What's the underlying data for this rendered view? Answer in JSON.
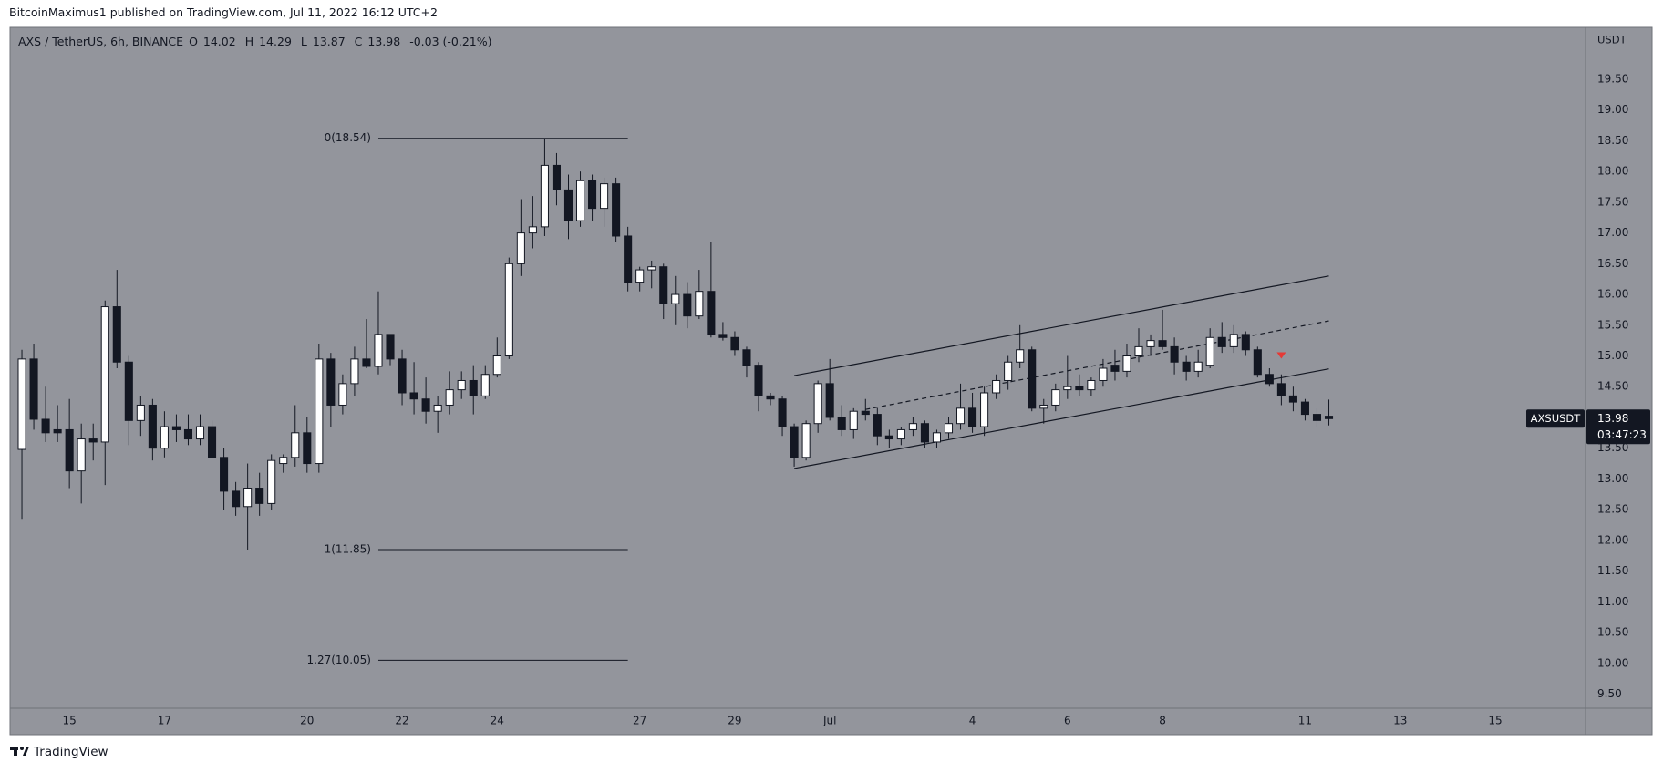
{
  "header": "BitcoinMaximus1 published on TradingView.com, Jul 11, 2022 16:12 UTC+2",
  "footer_brand": "TradingView",
  "chart_data": {
    "type": "candlestick",
    "title": "AXS / TetherUS, 6h, BINANCE",
    "ohlc_keys": [
      "O",
      "H",
      "L",
      "C"
    ],
    "change": "-0.03 (-0.21%)",
    "symbol": "AXSUSDT",
    "countdown": "03:47:23",
    "y_unit": "USDT",
    "up_color": "#ffffff",
    "down_color": "#131722",
    "wick_color": "#131722",
    "grid": false,
    "xlim": [
      -1,
      131.6
    ],
    "ylim": [
      9.27,
      20.33
    ],
    "xticks": [
      {
        "value": 4,
        "label": "15"
      },
      {
        "value": 12,
        "label": "17"
      },
      {
        "value": 24,
        "label": "20"
      },
      {
        "value": 32,
        "label": "22"
      },
      {
        "value": 40,
        "label": "24"
      },
      {
        "value": 52,
        "label": "27"
      },
      {
        "value": 60,
        "label": "29"
      },
      {
        "value": 68,
        "label": "Jul"
      },
      {
        "value": 80,
        "label": "4"
      },
      {
        "value": 88,
        "label": "6"
      },
      {
        "value": 96,
        "label": "8"
      },
      {
        "value": 108,
        "label": "11"
      },
      {
        "value": 116,
        "label": "13"
      },
      {
        "value": 124,
        "label": "15"
      }
    ],
    "yticks": [
      {
        "value": 9.5,
        "label": "9.50"
      },
      {
        "value": 10,
        "label": "10.00"
      },
      {
        "value": 10.5,
        "label": "10.50"
      },
      {
        "value": 11,
        "label": "11.00"
      },
      {
        "value": 11.5,
        "label": "11.50"
      },
      {
        "value": 12,
        "label": "12.00"
      },
      {
        "value": 12.5,
        "label": "12.50"
      },
      {
        "value": 13,
        "label": "13.00"
      },
      {
        "value": 13.5,
        "label": "13.50"
      },
      {
        "value": 14,
        "label": "14.00"
      },
      {
        "value": 14.5,
        "label": "14.50"
      },
      {
        "value": 15,
        "label": "15.00"
      },
      {
        "value": 15.5,
        "label": "15.50"
      },
      {
        "value": 16,
        "label": "16.00"
      },
      {
        "value": 16.5,
        "label": "16.50"
      },
      {
        "value": 17,
        "label": "17.00"
      },
      {
        "value": 17.5,
        "label": "17.50"
      },
      {
        "value": 18,
        "label": "18.00"
      },
      {
        "value": 18.5,
        "label": "18.50"
      },
      {
        "value": 19,
        "label": "19.00"
      },
      {
        "value": 19.5,
        "label": "19.50"
      }
    ],
    "fib_x": [
      30,
      51
    ],
    "fib_levels": [
      {
        "value": 18.54,
        "label": "0(18.54)"
      },
      {
        "value": 11.85,
        "label": "1(11.85)"
      },
      {
        "value": 10.05,
        "label": "1.27(10.05)"
      }
    ],
    "trendlines": [
      {
        "x": [
          65,
          110
        ],
        "y": [
          14.68,
          16.3
        ],
        "dashed": false
      },
      {
        "x": [
          65,
          110
        ],
        "y": [
          13.17,
          14.79
        ],
        "dashed": false
      },
      {
        "x": [
          71,
          110
        ],
        "y": [
          14.13,
          15.57
        ],
        "dashed": true
      }
    ],
    "marker": {
      "x": 106,
      "y": 15.0,
      "color": "#e53935"
    },
    "candles": [
      [
        13.48,
        15.1,
        12.35,
        14.95
      ],
      [
        14.95,
        15.2,
        13.8,
        13.97
      ],
      [
        13.97,
        14.5,
        13.6,
        13.75
      ],
      [
        13.8,
        14.2,
        13.6,
        13.75
      ],
      [
        13.8,
        14.3,
        12.85,
        13.13
      ],
      [
        13.13,
        13.9,
        12.6,
        13.65
      ],
      [
        13.65,
        13.9,
        13.3,
        13.6
      ],
      [
        13.6,
        15.9,
        12.9,
        15.8
      ],
      [
        15.8,
        16.4,
        14.8,
        14.9
      ],
      [
        14.9,
        15.0,
        13.55,
        13.95
      ],
      [
        13.95,
        14.35,
        13.7,
        14.2
      ],
      [
        14.2,
        14.3,
        13.3,
        13.5
      ],
      [
        13.5,
        14.1,
        13.35,
        13.85
      ],
      [
        13.85,
        14.05,
        13.6,
        13.8
      ],
      [
        13.8,
        14.05,
        13.55,
        13.65
      ],
      [
        13.65,
        14.05,
        13.55,
        13.85
      ],
      [
        13.85,
        13.95,
        13.35,
        13.35
      ],
      [
        13.35,
        13.5,
        12.5,
        12.8
      ],
      [
        12.8,
        12.95,
        12.4,
        12.55
      ],
      [
        12.55,
        13.25,
        11.85,
        12.85
      ],
      [
        12.85,
        13.1,
        12.4,
        12.6
      ],
      [
        12.6,
        13.4,
        12.5,
        13.3
      ],
      [
        13.25,
        13.4,
        13.1,
        13.35
      ],
      [
        13.35,
        14.2,
        13.2,
        13.75
      ],
      [
        13.75,
        14.0,
        13.1,
        13.25
      ],
      [
        13.25,
        15.2,
        13.1,
        14.95
      ],
      [
        14.95,
        15.05,
        13.85,
        14.2
      ],
      [
        14.2,
        14.7,
        14.05,
        14.55
      ],
      [
        14.55,
        15.15,
        14.35,
        14.95
      ],
      [
        14.95,
        15.6,
        14.8,
        14.83
      ],
      [
        14.83,
        16.05,
        14.7,
        15.35
      ],
      [
        15.35,
        15.35,
        14.85,
        14.95
      ],
      [
        14.95,
        15.1,
        14.2,
        14.4
      ],
      [
        14.4,
        14.9,
        14.05,
        14.3
      ],
      [
        14.3,
        14.65,
        13.9,
        14.1
      ],
      [
        14.1,
        14.35,
        13.75,
        14.2
      ],
      [
        14.2,
        14.75,
        14.05,
        14.45
      ],
      [
        14.45,
        14.75,
        14.3,
        14.6
      ],
      [
        14.6,
        14.85,
        14.05,
        14.35
      ],
      [
        14.35,
        14.85,
        14.3,
        14.7
      ],
      [
        14.7,
        15.3,
        14.65,
        15.0
      ],
      [
        15.0,
        16.6,
        14.95,
        16.5
      ],
      [
        16.5,
        17.55,
        16.3,
        17.0
      ],
      [
        17.0,
        17.6,
        16.75,
        17.1
      ],
      [
        17.1,
        18.54,
        16.95,
        18.1
      ],
      [
        18.1,
        18.3,
        17.45,
        17.7
      ],
      [
        17.7,
        17.95,
        16.9,
        17.2
      ],
      [
        17.2,
        18.0,
        17.1,
        17.85
      ],
      [
        17.85,
        17.95,
        17.2,
        17.4
      ],
      [
        17.4,
        17.9,
        17.1,
        17.8
      ],
      [
        17.8,
        17.9,
        16.85,
        16.95
      ],
      [
        16.95,
        17.1,
        16.05,
        16.2
      ],
      [
        16.2,
        16.45,
        16.05,
        16.4
      ],
      [
        16.4,
        16.55,
        16.1,
        16.45
      ],
      [
        16.45,
        16.5,
        15.6,
        15.85
      ],
      [
        15.85,
        16.3,
        15.5,
        16.0
      ],
      [
        16.0,
        16.2,
        15.45,
        15.65
      ],
      [
        15.65,
        16.4,
        15.6,
        16.05
      ],
      [
        16.05,
        16.85,
        15.3,
        15.35
      ],
      [
        15.35,
        15.55,
        15.25,
        15.3
      ],
      [
        15.3,
        15.4,
        15.0,
        15.1
      ],
      [
        15.1,
        15.15,
        14.65,
        14.85
      ],
      [
        14.85,
        14.9,
        14.1,
        14.35
      ],
      [
        14.35,
        14.4,
        14.2,
        14.3
      ],
      [
        14.3,
        14.35,
        13.7,
        13.85
      ],
      [
        13.85,
        13.9,
        13.2,
        13.35
      ],
      [
        13.35,
        13.95,
        13.3,
        13.9
      ],
      [
        13.9,
        14.6,
        13.75,
        14.55
      ],
      [
        14.55,
        14.95,
        13.95,
        14.0
      ],
      [
        14.0,
        14.2,
        13.7,
        13.8
      ],
      [
        13.8,
        14.15,
        13.65,
        14.1
      ],
      [
        14.1,
        14.3,
        13.95,
        14.05
      ],
      [
        14.05,
        14.15,
        13.55,
        13.7
      ],
      [
        13.7,
        13.8,
        13.5,
        13.65
      ],
      [
        13.65,
        13.85,
        13.55,
        13.8
      ],
      [
        13.8,
        14.0,
        13.7,
        13.9
      ],
      [
        13.9,
        13.95,
        13.5,
        13.6
      ],
      [
        13.6,
        13.8,
        13.5,
        13.75
      ],
      [
        13.75,
        14.0,
        13.65,
        13.9
      ],
      [
        13.9,
        14.55,
        13.8,
        14.15
      ],
      [
        14.15,
        14.4,
        13.75,
        13.85
      ],
      [
        13.85,
        14.5,
        13.7,
        14.4
      ],
      [
        14.4,
        14.7,
        14.3,
        14.6
      ],
      [
        14.6,
        15.0,
        14.45,
        14.9
      ],
      [
        14.9,
        15.5,
        14.8,
        15.1
      ],
      [
        15.1,
        15.15,
        14.1,
        14.15
      ],
      [
        14.15,
        14.3,
        13.9,
        14.2
      ],
      [
        14.2,
        14.55,
        14.1,
        14.45
      ],
      [
        14.45,
        15.0,
        14.3,
        14.5
      ],
      [
        14.5,
        14.7,
        14.35,
        14.45
      ],
      [
        14.45,
        14.65,
        14.35,
        14.6
      ],
      [
        14.6,
        14.95,
        14.5,
        14.8
      ],
      [
        14.85,
        15.1,
        14.6,
        14.75
      ],
      [
        14.75,
        15.2,
        14.65,
        15.0
      ],
      [
        15.0,
        15.45,
        14.9,
        15.15
      ],
      [
        15.15,
        15.35,
        15.0,
        15.25
      ],
      [
        15.25,
        15.75,
        15.1,
        15.15
      ],
      [
        15.15,
        15.3,
        14.7,
        14.9
      ],
      [
        14.9,
        15.0,
        14.6,
        14.75
      ],
      [
        14.75,
        15.1,
        14.65,
        14.9
      ],
      [
        14.85,
        15.45,
        14.8,
        15.3
      ],
      [
        15.3,
        15.55,
        15.05,
        15.15
      ],
      [
        15.15,
        15.5,
        15.05,
        15.35
      ],
      [
        15.35,
        15.4,
        15.0,
        15.1
      ],
      [
        15.1,
        15.15,
        14.65,
        14.7
      ],
      [
        14.7,
        14.8,
        14.5,
        14.55
      ],
      [
        14.55,
        14.7,
        14.2,
        14.35
      ],
      [
        14.35,
        14.5,
        14.1,
        14.25
      ],
      [
        14.25,
        14.3,
        13.95,
        14.05
      ],
      [
        14.05,
        14.15,
        13.85,
        13.95
      ],
      [
        14.02,
        14.29,
        13.87,
        13.98
      ]
    ]
  }
}
